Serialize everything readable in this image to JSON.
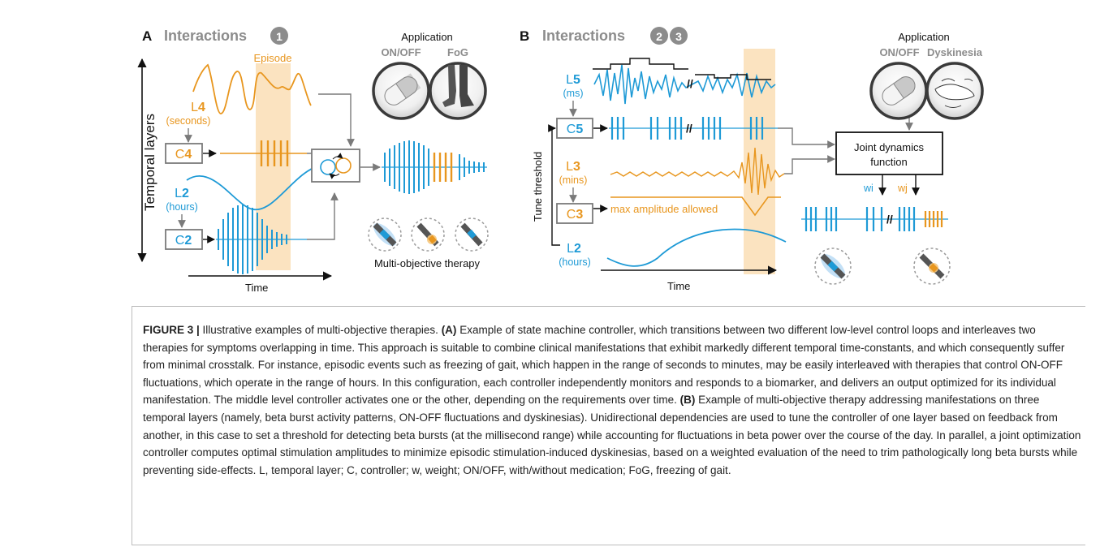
{
  "panel_a": {
    "letter": "A",
    "title": "Interactions",
    "badge": "1",
    "application_label": "Application",
    "app_items": [
      {
        "label": "ON/OFF",
        "icon": "pill-icon"
      },
      {
        "label": "FoG",
        "icon": "legs-icon"
      }
    ],
    "axis_y": "Temporal layers",
    "axis_x": "Time",
    "episode": "Episode",
    "layers": [
      {
        "name": "L",
        "num": "4",
        "unit": "(seconds)"
      },
      {
        "name": "L",
        "num": "2",
        "unit": "(hours)"
      }
    ],
    "controllers": [
      {
        "name": "C",
        "num": "4"
      },
      {
        "name": "C",
        "num": "2"
      }
    ],
    "multi": "Multi-objective therapy"
  },
  "panel_b": {
    "letter": "B",
    "title": "Interactions",
    "badges": [
      "2",
      "3"
    ],
    "application_label": "Application",
    "app_items": [
      {
        "label": "ON/OFF",
        "icon": "pill-icon"
      },
      {
        "label": "Dyskinesia",
        "icon": "hand-icon"
      }
    ],
    "layers": [
      {
        "name": "L",
        "num": "5",
        "unit": "(ms)"
      },
      {
        "name": "L",
        "num": "3",
        "unit": "(mins)"
      },
      {
        "name": "L",
        "num": "2",
        "unit": "(hours)"
      }
    ],
    "controllers": [
      {
        "name": "C",
        "num": "5"
      },
      {
        "name": "C",
        "num": "3"
      }
    ],
    "tune": "Tune threshold",
    "max_amp": "max amplitude allowed",
    "joint": [
      "Joint dynamics",
      "function"
    ],
    "wi": "wi",
    "wj": "wj",
    "axis_x": "Time"
  },
  "caption": {
    "label": "FIGURE 3 |",
    "intro": " Illustrative examples of multi-objective therapies. ",
    "a_label": "(A)",
    "a_text": " Example of state machine controller, which transitions between two different low-level control loops and interleaves two therapies for symptoms overlapping in time. This approach is suitable to combine clinical manifestations that exhibit markedly different temporal time-constants, and which consequently suffer from minimal crosstalk. For instance, episodic events such as freezing of gait, which happen in the range of seconds to minutes, may be easily interleaved with therapies that control ON-OFF fluctuations, which operate in the range of hours. In this configuration, each controller independently monitors and responds to a biomarker, and delivers an output optimized for its individual manifestation. The middle level controller activates one or the other, depending on the requirements over time. ",
    "b_label": "(B)",
    "b_text": " Example of multi-objective therapy addressing manifestations on three temporal layers (namely, beta burst activity patterns, ON-OFF fluctuations and dyskinesias). Unidirectional dependencies are used to tune the controller of one layer based on feedback from another, in this case to set a threshold for detecting beta bursts (at the millisecond range) while accounting for fluctuations in beta power over the course of the day. In parallel, a joint optimization controller computes optimal stimulation amplitudes to minimize episodic stimulation-induced dyskinesias, based on a weighted evaluation of the need to trim pathologically long beta bursts while preventing side-effects. L, temporal layer; C, controller; w, weight; ON/OFF, with/without medication; FoG, freezing of gait."
  },
  "colors": {
    "orange": "#e8961e",
    "blue": "#1e9ad6",
    "gray": "#7a7a7a",
    "highlight": "#fbe3c0",
    "dark": "#111111"
  }
}
